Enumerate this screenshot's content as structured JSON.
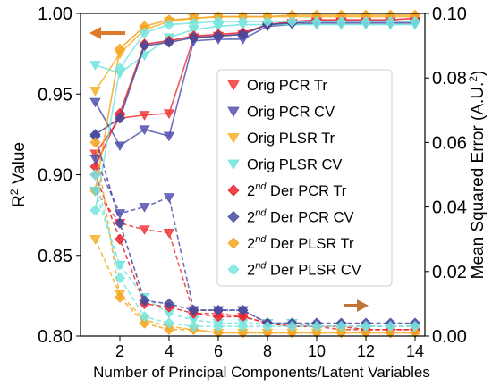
{
  "chart_data": {
    "type": "line",
    "xlabel": "Number of Principal Components/Latent Variables",
    "ylabel_left_main": "R",
    "ylabel_left_sup": "2",
    "ylabel_left_rest": " Value",
    "ylabel_right_main": "Mean Squared Error (A.U.",
    "ylabel_right_sup": "2",
    "ylabel_right_rest": ")",
    "xlim": [
      0.4,
      14.4
    ],
    "ylim_left": [
      0.8,
      1.0
    ],
    "ylim_right": [
      0.0,
      0.1
    ],
    "x_ticks": [
      "2",
      "4",
      "6",
      "8",
      "10",
      "12",
      "14"
    ],
    "y_left_ticks": [
      "0.80",
      "0.85",
      "0.90",
      "0.95",
      "1.00"
    ],
    "y_right_ticks": [
      "0.00",
      "0.02",
      "0.04",
      "0.06",
      "0.08",
      "0.10"
    ],
    "x": [
      1,
      2,
      3,
      4,
      5,
      6,
      7,
      8,
      9,
      10,
      11,
      12,
      13,
      14
    ],
    "arrows": [
      {
        "points_to": "left axis",
        "direction": "left",
        "color": "#e07a2b"
      },
      {
        "points_to": "right axis",
        "direction": "right",
        "color": "#c07536"
      }
    ],
    "series": [
      {
        "name": "Orig PCR Tr",
        "name_sup": "",
        "axis": "left",
        "style": "solid",
        "marker": "triangle-down",
        "color": "#f23a3a",
        "values": [
          0.913,
          0.935,
          0.937,
          0.938,
          0.985,
          0.986,
          0.987,
          0.993,
          0.994,
          0.995,
          0.995,
          0.995,
          0.995,
          0.995
        ]
      },
      {
        "name": "Orig PCR CV",
        "name_sup": "",
        "axis": "left",
        "style": "solid",
        "marker": "triangle-down",
        "color": "#5354b0",
        "values": [
          0.945,
          0.918,
          0.928,
          0.924,
          0.983,
          0.984,
          0.984,
          0.992,
          0.993,
          0.994,
          0.994,
          0.994,
          0.994,
          0.994
        ]
      },
      {
        "name": "Orig PLSR Tr",
        "name_sup": "",
        "axis": "left",
        "style": "solid",
        "marker": "triangle-down",
        "color": "#f7b12c",
        "values": [
          0.952,
          0.975,
          0.99,
          0.995,
          0.997,
          0.998,
          0.998,
          0.998,
          0.998,
          0.998,
          0.998,
          0.998,
          0.998,
          0.998
        ]
      },
      {
        "name": "Orig PLSR CV",
        "name_sup": "",
        "axis": "left",
        "style": "solid",
        "marker": "triangle-down",
        "color": "#6fe3dd",
        "values": [
          0.968,
          0.963,
          0.974,
          0.985,
          0.99,
          0.992,
          0.993,
          0.993,
          0.993,
          0.993,
          0.993,
          0.993,
          0.993,
          0.993
        ]
      },
      {
        "name": " Der PCR Tr",
        "name_sup": "2nd",
        "axis": "left",
        "style": "solid",
        "marker": "diamond",
        "color": "#e8262f",
        "values": [
          0.905,
          0.938,
          0.981,
          0.983,
          0.986,
          0.987,
          0.988,
          0.993,
          0.995,
          0.996,
          0.996,
          0.996,
          0.996,
          0.997
        ]
      },
      {
        "name": " Der PCR CV",
        "name_sup": "2nd",
        "axis": "left",
        "style": "solid",
        "marker": "diamond",
        "color": "#454a9e",
        "values": [
          0.925,
          0.935,
          0.98,
          0.982,
          0.985,
          0.986,
          0.987,
          0.993,
          0.994,
          0.995,
          0.995,
          0.995,
          0.995,
          0.995
        ]
      },
      {
        "name": " Der PLSR Tr",
        "name_sup": "2nd",
        "axis": "left",
        "style": "solid",
        "marker": "diamond",
        "color": "#f6a623",
        "values": [
          0.89,
          0.978,
          0.992,
          0.996,
          0.997,
          0.998,
          0.998,
          0.998,
          0.999,
          0.999,
          0.999,
          0.999,
          0.999,
          0.999
        ]
      },
      {
        "name": " Der PLSR CV",
        "name_sup": "2nd",
        "axis": "left",
        "style": "solid",
        "marker": "diamond",
        "color": "#79e6e0",
        "values": [
          0.878,
          0.966,
          0.988,
          0.993,
          0.994,
          0.995,
          0.995,
          0.995,
          0.995,
          0.995,
          0.995,
          0.995,
          0.995,
          0.995
        ]
      },
      {
        "name": "Orig PCR Tr",
        "name_sup": "",
        "axis": "right",
        "style": "dashed",
        "marker": "triangle-down",
        "color": "#f23a3a",
        "values": [
          0.045,
          0.035,
          0.033,
          0.032,
          0.007,
          0.007,
          0.006,
          0.004,
          0.003,
          0.003,
          0.002,
          0.002,
          0.002,
          0.002
        ]
      },
      {
        "name": "Orig PCR CV",
        "name_sup": "",
        "axis": "right",
        "style": "dashed",
        "marker": "triangle-down",
        "color": "#5354b0",
        "values": [
          0.055,
          0.038,
          0.04,
          0.043,
          0.008,
          0.008,
          0.008,
          0.004,
          0.004,
          0.003,
          0.003,
          0.003,
          0.003,
          0.003
        ]
      },
      {
        "name": "Orig PLSR Tr",
        "name_sup": "",
        "axis": "right",
        "style": "dashed",
        "marker": "triangle-down",
        "color": "#f7b12c",
        "values": [
          0.03,
          0.013,
          0.005,
          0.003,
          0.002,
          0.001,
          0.001,
          0.001,
          0.001,
          0.001,
          0.001,
          0.001,
          0.001,
          0.001
        ]
      },
      {
        "name": "Orig PLSR CV",
        "name_sup": "",
        "axis": "right",
        "style": "dashed",
        "marker": "triangle-down",
        "color": "#6fe3dd",
        "values": [
          0.045,
          0.022,
          0.012,
          0.007,
          0.005,
          0.004,
          0.004,
          0.004,
          0.004,
          0.003,
          0.003,
          0.003,
          0.003,
          0.003
        ]
      },
      {
        "name": " Der PCR Tr",
        "name_sup": "2nd",
        "axis": "right",
        "style": "dashed",
        "marker": "diamond",
        "color": "#e8262f",
        "values": [
          0.05,
          0.03,
          0.01,
          0.009,
          0.007,
          0.006,
          0.006,
          0.004,
          0.003,
          0.003,
          0.003,
          0.002,
          0.002,
          0.002
        ]
      },
      {
        "name": " Der PCR CV",
        "name_sup": "2nd",
        "axis": "right",
        "style": "dashed",
        "marker": "diamond",
        "color": "#454a9e",
        "values": [
          0.062,
          0.035,
          0.011,
          0.01,
          0.008,
          0.008,
          0.008,
          0.004,
          0.004,
          0.004,
          0.004,
          0.004,
          0.004,
          0.004
        ]
      },
      {
        "name": " Der PLSR Tr",
        "name_sup": "2nd",
        "axis": "right",
        "style": "dashed",
        "marker": "diamond",
        "color": "#f6a623",
        "values": [
          0.06,
          0.012,
          0.004,
          0.002,
          0.002,
          0.001,
          0.001,
          0.001,
          0.001,
          0.001,
          0.001,
          0.001,
          0.001,
          0.001
        ]
      },
      {
        "name": " Der PLSR CV",
        "name_sup": "2nd",
        "axis": "right",
        "style": "dashed",
        "marker": "diamond",
        "color": "#79e6e0",
        "values": [
          0.05,
          0.018,
          0.006,
          0.004,
          0.003,
          0.003,
          0.003,
          0.003,
          0.003,
          0.003,
          0.003,
          0.003,
          0.003,
          0.003
        ]
      }
    ],
    "legend": {
      "placement": "center-right",
      "entries": [
        {
          "text": "Orig PCR Tr",
          "sup": "",
          "marker": "triangle-down",
          "color": "#f23a3a"
        },
        {
          "text": "Orig PCR CV",
          "sup": "",
          "marker": "triangle-down",
          "color": "#5354b0"
        },
        {
          "text": "Orig PLSR Tr",
          "sup": "",
          "marker": "triangle-down",
          "color": "#f7b12c"
        },
        {
          "text": "Orig PLSR CV",
          "sup": "",
          "marker": "triangle-down",
          "color": "#6fe3dd"
        },
        {
          "text": " Der PCR Tr",
          "sup": "2nd",
          "marker": "diamond",
          "color": "#e8262f"
        },
        {
          "text": " Der PCR CV",
          "sup": "2nd",
          "marker": "diamond",
          "color": "#454a9e"
        },
        {
          "text": " Der PLSR Tr",
          "sup": "2nd",
          "marker": "diamond",
          "color": "#f6a623"
        },
        {
          "text": " Der PLSR CV",
          "sup": "2nd",
          "marker": "diamond",
          "color": "#79e6e0"
        }
      ]
    }
  }
}
